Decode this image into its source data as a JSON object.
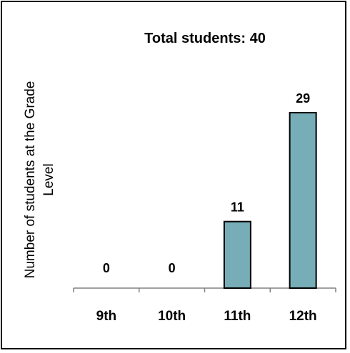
{
  "chart_data": {
    "type": "bar",
    "title": "Total students: 40",
    "ylabel": "Number of students at the Grade Level",
    "ylabel_lines": [
      "Number of students at the Grade",
      "Level"
    ],
    "xlabel": "",
    "categories": [
      "9th",
      "10th",
      "11th",
      "12th"
    ],
    "values": [
      0,
      0,
      11,
      29
    ],
    "data_labels": [
      "0",
      "0",
      "11",
      "29"
    ],
    "ylim": [
      0,
      29
    ],
    "grid": false,
    "legend": "none",
    "colors": {
      "bar_fill": "#76adb7",
      "bar_stroke": "#000000",
      "axis": "#808080"
    }
  }
}
